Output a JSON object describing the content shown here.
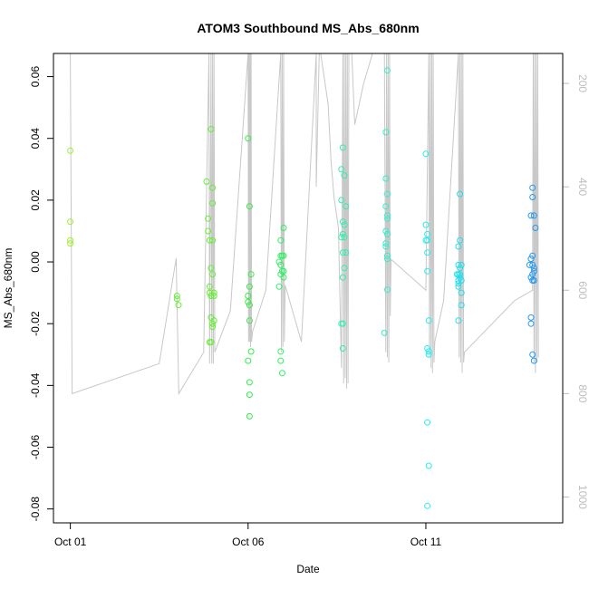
{
  "chart_data": {
    "type": "scatter",
    "title": "ATOM3 Southbound MS_Abs_680nm",
    "xlabel": "Date",
    "ylabel": "MS_Abs_680nm",
    "xlim": [
      "2016-09-30T12:36",
      "2016-10-14T20:24"
    ],
    "ylim": [
      -0.0845,
      0.0675
    ],
    "xticks": [
      {
        "x": "2016-10-01",
        "label": "Oct 01"
      },
      {
        "x": "2016-10-06",
        "label": "Oct 06"
      },
      {
        "x": "2016-10-11",
        "label": "Oct 11"
      }
    ],
    "yticks": [
      {
        "y": 0.06,
        "label": "0.06"
      },
      {
        "y": 0.04,
        "label": "0.04"
      },
      {
        "y": 0.02,
        "label": "0.02"
      },
      {
        "y": 0.0,
        "label": "0.00"
      },
      {
        "y": -0.02,
        "label": "-0.02"
      },
      {
        "y": -0.04,
        "label": "-0.04"
      },
      {
        "y": -0.06,
        "label": "-0.06"
      },
      {
        "y": -0.08,
        "label": "-0.08"
      }
    ],
    "depth_axis": {
      "side": "right",
      "lim": [
        142,
        1050
      ],
      "ticks": [
        {
          "v": 200,
          "label": "200"
        },
        {
          "v": 400,
          "label": "400"
        },
        {
          "v": 600,
          "label": "600"
        },
        {
          "v": 800,
          "label": "800"
        },
        {
          "v": 1000,
          "label": "1000"
        }
      ],
      "track_color": "#c8c8c8"
    },
    "depth_track": [
      [
        "2016-10-01T00:00",
        142
      ],
      [
        "2016-10-01T01:12",
        800
      ],
      [
        "2016-10-03T12:00",
        742
      ],
      [
        "2016-10-03T23:24",
        538
      ],
      [
        "2016-10-04T01:12",
        800
      ],
      [
        "2016-10-04T18:00",
        720
      ],
      [
        "2016-10-04T21:36",
        142
      ],
      [
        "2016-10-04T22:00",
        742
      ],
      [
        "2016-10-04T23:00",
        142
      ],
      [
        "2016-10-04T23:30",
        742
      ],
      [
        "2016-10-05T00:00",
        142
      ],
      [
        "2016-10-05T00:30",
        742
      ],
      [
        "2016-10-05T01:00",
        142
      ],
      [
        "2016-10-05T01:30",
        720
      ],
      [
        "2016-10-05T12:00",
        640
      ],
      [
        "2016-10-06T00:00",
        142
      ],
      [
        "2016-10-06T00:20",
        700
      ],
      [
        "2016-10-06T00:40",
        142
      ],
      [
        "2016-10-06T01:00",
        700
      ],
      [
        "2016-10-06T01:20",
        142
      ],
      [
        "2016-10-06T01:40",
        710
      ],
      [
        "2016-10-06T02:00",
        142
      ],
      [
        "2016-10-06T02:20",
        700
      ],
      [
        "2016-10-06T03:00",
        680
      ],
      [
        "2016-10-06T12:00",
        600
      ],
      [
        "2016-10-06T22:00",
        142
      ],
      [
        "2016-10-06T22:30",
        720
      ],
      [
        "2016-10-06T23:00",
        142
      ],
      [
        "2016-10-06T23:30",
        710
      ],
      [
        "2016-10-07T00:00",
        142
      ],
      [
        "2016-10-07T00:30",
        700
      ],
      [
        "2016-10-07T01:00",
        590
      ],
      [
        "2016-10-07T12:00",
        700
      ],
      [
        "2016-10-07T22:00",
        142
      ],
      [
        "2016-10-07T22:00",
        400
      ],
      [
        "2016-10-08T00:00",
        142
      ],
      [
        "2016-10-08T01:00",
        142
      ],
      [
        "2016-10-08T06:00",
        240
      ],
      [
        "2016-10-08T08:00",
        350
      ],
      [
        "2016-10-08T10:00",
        420
      ],
      [
        "2016-10-08T13:00",
        480
      ],
      [
        "2016-10-08T15:00",
        750
      ],
      [
        "2016-10-08T16:00",
        142
      ],
      [
        "2016-10-08T16:30",
        780
      ],
      [
        "2016-10-08T17:00",
        142
      ],
      [
        "2016-10-08T17:30",
        770
      ],
      [
        "2016-10-08T18:00",
        142
      ],
      [
        "2016-10-08T18:30",
        790
      ],
      [
        "2016-10-08T19:00",
        142
      ],
      [
        "2016-10-08T19:30",
        780
      ],
      [
        "2016-10-08T20:00",
        142
      ],
      [
        "2016-10-08T22:00",
        142
      ],
      [
        "2016-10-09T00:00",
        280
      ],
      [
        "2016-10-09T06:00",
        200
      ],
      [
        "2016-10-09T12:00",
        142
      ],
      [
        "2016-10-09T20:00",
        142
      ],
      [
        "2016-10-09T21:00",
        720
      ],
      [
        "2016-10-09T21:30",
        142
      ],
      [
        "2016-10-09T22:00",
        730
      ],
      [
        "2016-10-09T22:30",
        142
      ],
      [
        "2016-10-09T23:00",
        740
      ],
      [
        "2016-10-09T23:30",
        142
      ],
      [
        "2016-10-10T00:00",
        650
      ],
      [
        "2016-10-10T00:30",
        540
      ],
      [
        "2016-10-11T00:00",
        600
      ],
      [
        "2016-10-11T02:00",
        142
      ],
      [
        "2016-10-11T02:30",
        730
      ],
      [
        "2016-10-11T03:00",
        142
      ],
      [
        "2016-10-11T03:30",
        750
      ],
      [
        "2016-10-11T04:00",
        142
      ],
      [
        "2016-10-11T04:30",
        760
      ],
      [
        "2016-10-11T05:00",
        142
      ],
      [
        "2016-10-11T05:30",
        740
      ],
      [
        "2016-10-11T06:00",
        700
      ],
      [
        "2016-10-11T12:00",
        620
      ],
      [
        "2016-10-11T22:00",
        142
      ],
      [
        "2016-10-11T22:30",
        730
      ],
      [
        "2016-10-11T23:00",
        142
      ],
      [
        "2016-10-11T23:30",
        740
      ],
      [
        "2016-10-12T00:00",
        142
      ],
      [
        "2016-10-12T00:30",
        760
      ],
      [
        "2016-10-12T01:00",
        142
      ],
      [
        "2016-10-12T01:30",
        740
      ],
      [
        "2016-10-12T02:00",
        720
      ],
      [
        "2016-10-13T12:00",
        620
      ],
      [
        "2016-10-14T00:00",
        600
      ],
      [
        "2016-10-14T00:30",
        142
      ],
      [
        "2016-10-14T01:00",
        740
      ],
      [
        "2016-10-14T01:30",
        142
      ],
      [
        "2016-10-14T02:00",
        760
      ],
      [
        "2016-10-14T02:30",
        142
      ],
      [
        "2016-10-14T03:00",
        740
      ],
      [
        "2016-10-14T03:30",
        142
      ],
      [
        "2016-10-14T04:00",
        730
      ]
    ],
    "series": [
      {
        "color": "#9ef02a",
        "points": [
          [
            "2016-10-01T00:00",
            0.036
          ],
          [
            "2016-10-01T00:00",
            0.013
          ],
          [
            "2016-10-01T00:00",
            0.007
          ],
          [
            "2016-10-01T00:00",
            0.006
          ]
        ]
      },
      {
        "color": "#66ee33",
        "points": [
          [
            "2016-10-04T00:00",
            -0.011
          ],
          [
            "2016-10-04T00:00",
            -0.012
          ],
          [
            "2016-10-04T01:00",
            -0.014
          ],
          [
            "2016-10-04T20:00",
            0.026
          ],
          [
            "2016-10-04T21:00",
            0.014
          ],
          [
            "2016-10-04T21:00",
            0.01
          ],
          [
            "2016-10-04T22:00",
            0.007
          ],
          [
            "2016-10-04T23:00",
            0.043
          ],
          [
            "2016-10-05T00:00",
            0.024
          ],
          [
            "2016-10-05T00:00",
            0.019
          ],
          [
            "2016-10-04T22:00",
            -0.008
          ],
          [
            "2016-10-04T22:00",
            -0.01
          ],
          [
            "2016-10-04T23:00",
            -0.011
          ],
          [
            "2016-10-05T01:00",
            -0.01
          ],
          [
            "2016-10-04T23:00",
            -0.002
          ],
          [
            "2016-10-05T00:00",
            -0.004
          ],
          [
            "2016-10-04T23:00",
            -0.018
          ],
          [
            "2016-10-05T00:00",
            -0.02
          ],
          [
            "2016-10-05T00:00",
            -0.021
          ],
          [
            "2016-10-05T01:00",
            -0.019
          ],
          [
            "2016-10-04T22:00",
            -0.026
          ],
          [
            "2016-10-04T23:00",
            -0.026
          ],
          [
            "2016-10-05T00:00",
            0.007
          ],
          [
            "2016-10-05T01:00",
            -0.011
          ]
        ]
      },
      {
        "color": "#33ee44",
        "points": [
          [
            "2016-10-06T00:00",
            0.04
          ],
          [
            "2016-10-06T01:00",
            0.018
          ],
          [
            "2016-10-06T02:00",
            -0.004
          ],
          [
            "2016-10-06T00:00",
            -0.011
          ],
          [
            "2016-10-06T00:00",
            -0.013
          ],
          [
            "2016-10-06T01:00",
            -0.014
          ],
          [
            "2016-10-06T01:00",
            -0.008
          ],
          [
            "2016-10-06T01:00",
            -0.019
          ],
          [
            "2016-10-06T02:00",
            -0.029
          ],
          [
            "2016-10-06T00:00",
            -0.032
          ],
          [
            "2016-10-06T01:00",
            -0.039
          ],
          [
            "2016-10-06T01:00",
            -0.043
          ],
          [
            "2016-10-06T01:00",
            -0.05
          ]
        ]
      },
      {
        "color": "#33ee66",
        "points": [
          [
            "2016-10-07T00:00",
            0.011
          ],
          [
            "2016-10-06T22:00",
            0.007
          ],
          [
            "2016-10-06T22:00",
            0.002
          ],
          [
            "2016-10-06T23:00",
            0.002
          ],
          [
            "2016-10-07T00:00",
            0.002
          ],
          [
            "2016-10-06T21:00",
            0.0
          ],
          [
            "2016-10-06T22:00",
            -0.001
          ],
          [
            "2016-10-06T23:00",
            -0.003
          ],
          [
            "2016-10-07T00:00",
            -0.003
          ],
          [
            "2016-10-07T00:00",
            -0.005
          ],
          [
            "2016-10-06T22:00",
            -0.004
          ],
          [
            "2016-10-06T21:00",
            -0.008
          ],
          [
            "2016-10-06T22:00",
            -0.029
          ],
          [
            "2016-10-06T22:00",
            -0.032
          ],
          [
            "2016-10-06T23:00",
            -0.036
          ]
        ]
      },
      {
        "color": "#33eeaa",
        "points": [
          [
            "2016-10-08T16:00",
            0.037
          ],
          [
            "2016-10-08T15:00",
            0.03
          ],
          [
            "2016-10-08T17:00",
            0.028
          ],
          [
            "2016-10-08T15:00",
            0.02
          ],
          [
            "2016-10-08T18:00",
            0.018
          ],
          [
            "2016-10-08T16:00",
            0.013
          ],
          [
            "2016-10-08T17:00",
            0.012
          ],
          [
            "2016-10-08T16:00",
            0.009
          ],
          [
            "2016-10-08T17:00",
            0.008
          ],
          [
            "2016-10-08T15:00",
            0.008
          ],
          [
            "2016-10-08T16:00",
            0.003
          ],
          [
            "2016-10-08T18:00",
            0.003
          ],
          [
            "2016-10-08T17:00",
            -0.002
          ],
          [
            "2016-10-08T16:00",
            -0.005
          ],
          [
            "2016-10-08T15:00",
            -0.02
          ],
          [
            "2016-10-08T16:00",
            -0.02
          ],
          [
            "2016-10-08T16:00",
            -0.028
          ]
        ]
      },
      {
        "color": "#33eecc",
        "points": [
          [
            "2016-10-09T22:00",
            0.062
          ],
          [
            "2016-10-09T21:00",
            0.042
          ],
          [
            "2016-10-09T21:00",
            0.027
          ],
          [
            "2016-10-09T22:00",
            0.022
          ],
          [
            "2016-10-09T21:00",
            0.018
          ],
          [
            "2016-10-09T22:00",
            0.015
          ],
          [
            "2016-10-09T22:00",
            0.014
          ],
          [
            "2016-10-09T21:00",
            0.01
          ],
          [
            "2016-10-09T22:00",
            0.009
          ],
          [
            "2016-10-09T21:00",
            0.006
          ],
          [
            "2016-10-09T21:00",
            0.005
          ],
          [
            "2016-10-09T22:00",
            0.002
          ],
          [
            "2016-10-09T22:00",
            0.001
          ],
          [
            "2016-10-09T22:00",
            -0.009
          ],
          [
            "2016-10-09T20:00",
            -0.023
          ]
        ]
      },
      {
        "color": "#22eeee",
        "points": [
          [
            "2016-10-11T00:00",
            0.035
          ],
          [
            "2016-10-11T00:00",
            0.012
          ],
          [
            "2016-10-11T01:00",
            0.009
          ],
          [
            "2016-10-11T01:00",
            0.007
          ],
          [
            "2016-10-11T00:00",
            0.007
          ],
          [
            "2016-10-11T01:00",
            0.003
          ],
          [
            "2016-10-11T01:00",
            -0.003
          ],
          [
            "2016-10-11T02:00",
            -0.019
          ],
          [
            "2016-10-11T01:00",
            -0.028
          ],
          [
            "2016-10-11T02:00",
            -0.029
          ],
          [
            "2016-10-11T02:00",
            -0.03
          ],
          [
            "2016-10-11T01:00",
            -0.052
          ],
          [
            "2016-10-11T02:00",
            -0.066
          ],
          [
            "2016-10-11T01:00",
            -0.079
          ]
        ]
      },
      {
        "color": "#22ddee",
        "points": [
          [
            "2016-10-11T23:00",
            0.022
          ],
          [
            "2016-10-11T22:00",
            0.005
          ],
          [
            "2016-10-11T23:00",
            0.007
          ],
          [
            "2016-10-11T22:00",
            -0.001
          ],
          [
            "2016-10-12T00:00",
            -0.001
          ],
          [
            "2016-10-11T23:00",
            -0.002
          ],
          [
            "2016-10-11T21:00",
            -0.004
          ],
          [
            "2016-10-11T22:00",
            -0.004
          ],
          [
            "2016-10-11T23:00",
            -0.004
          ],
          [
            "2016-10-11T23:00",
            -0.005
          ],
          [
            "2016-10-11T22:00",
            -0.006
          ],
          [
            "2016-10-12T00:00",
            -0.006
          ],
          [
            "2016-10-11T22:00",
            -0.007
          ],
          [
            "2016-10-11T22:00",
            -0.008
          ],
          [
            "2016-10-12T00:00",
            -0.01
          ],
          [
            "2016-10-12T00:00",
            -0.014
          ],
          [
            "2016-10-11T22:00",
            -0.019
          ]
        ]
      },
      {
        "color": "#2299ee",
        "points": [
          [
            "2016-10-14T00:00",
            0.024
          ],
          [
            "2016-10-14T00:00",
            0.021
          ],
          [
            "2016-10-13T23:00",
            0.015
          ],
          [
            "2016-10-14T01:00",
            0.015
          ],
          [
            "2016-10-14T02:00",
            0.011
          ],
          [
            "2016-10-14T00:00",
            0.002
          ],
          [
            "2016-10-13T23:00",
            0.001
          ],
          [
            "2016-10-13T22:00",
            -0.001
          ],
          [
            "2016-10-14T00:00",
            -0.001
          ],
          [
            "2016-10-14T01:00",
            -0.002
          ],
          [
            "2016-10-14T01:00",
            -0.003
          ],
          [
            "2016-10-14T00:00",
            -0.004
          ],
          [
            "2016-10-13T23:00",
            -0.005
          ],
          [
            "2016-10-14T00:00",
            -0.006
          ],
          [
            "2016-10-14T01:00",
            -0.006
          ],
          [
            "2016-10-13T23:00",
            -0.018
          ],
          [
            "2016-10-13T23:00",
            -0.02
          ],
          [
            "2016-10-14T00:00",
            -0.03
          ],
          [
            "2016-10-14T01:00",
            -0.032
          ]
        ]
      }
    ]
  }
}
